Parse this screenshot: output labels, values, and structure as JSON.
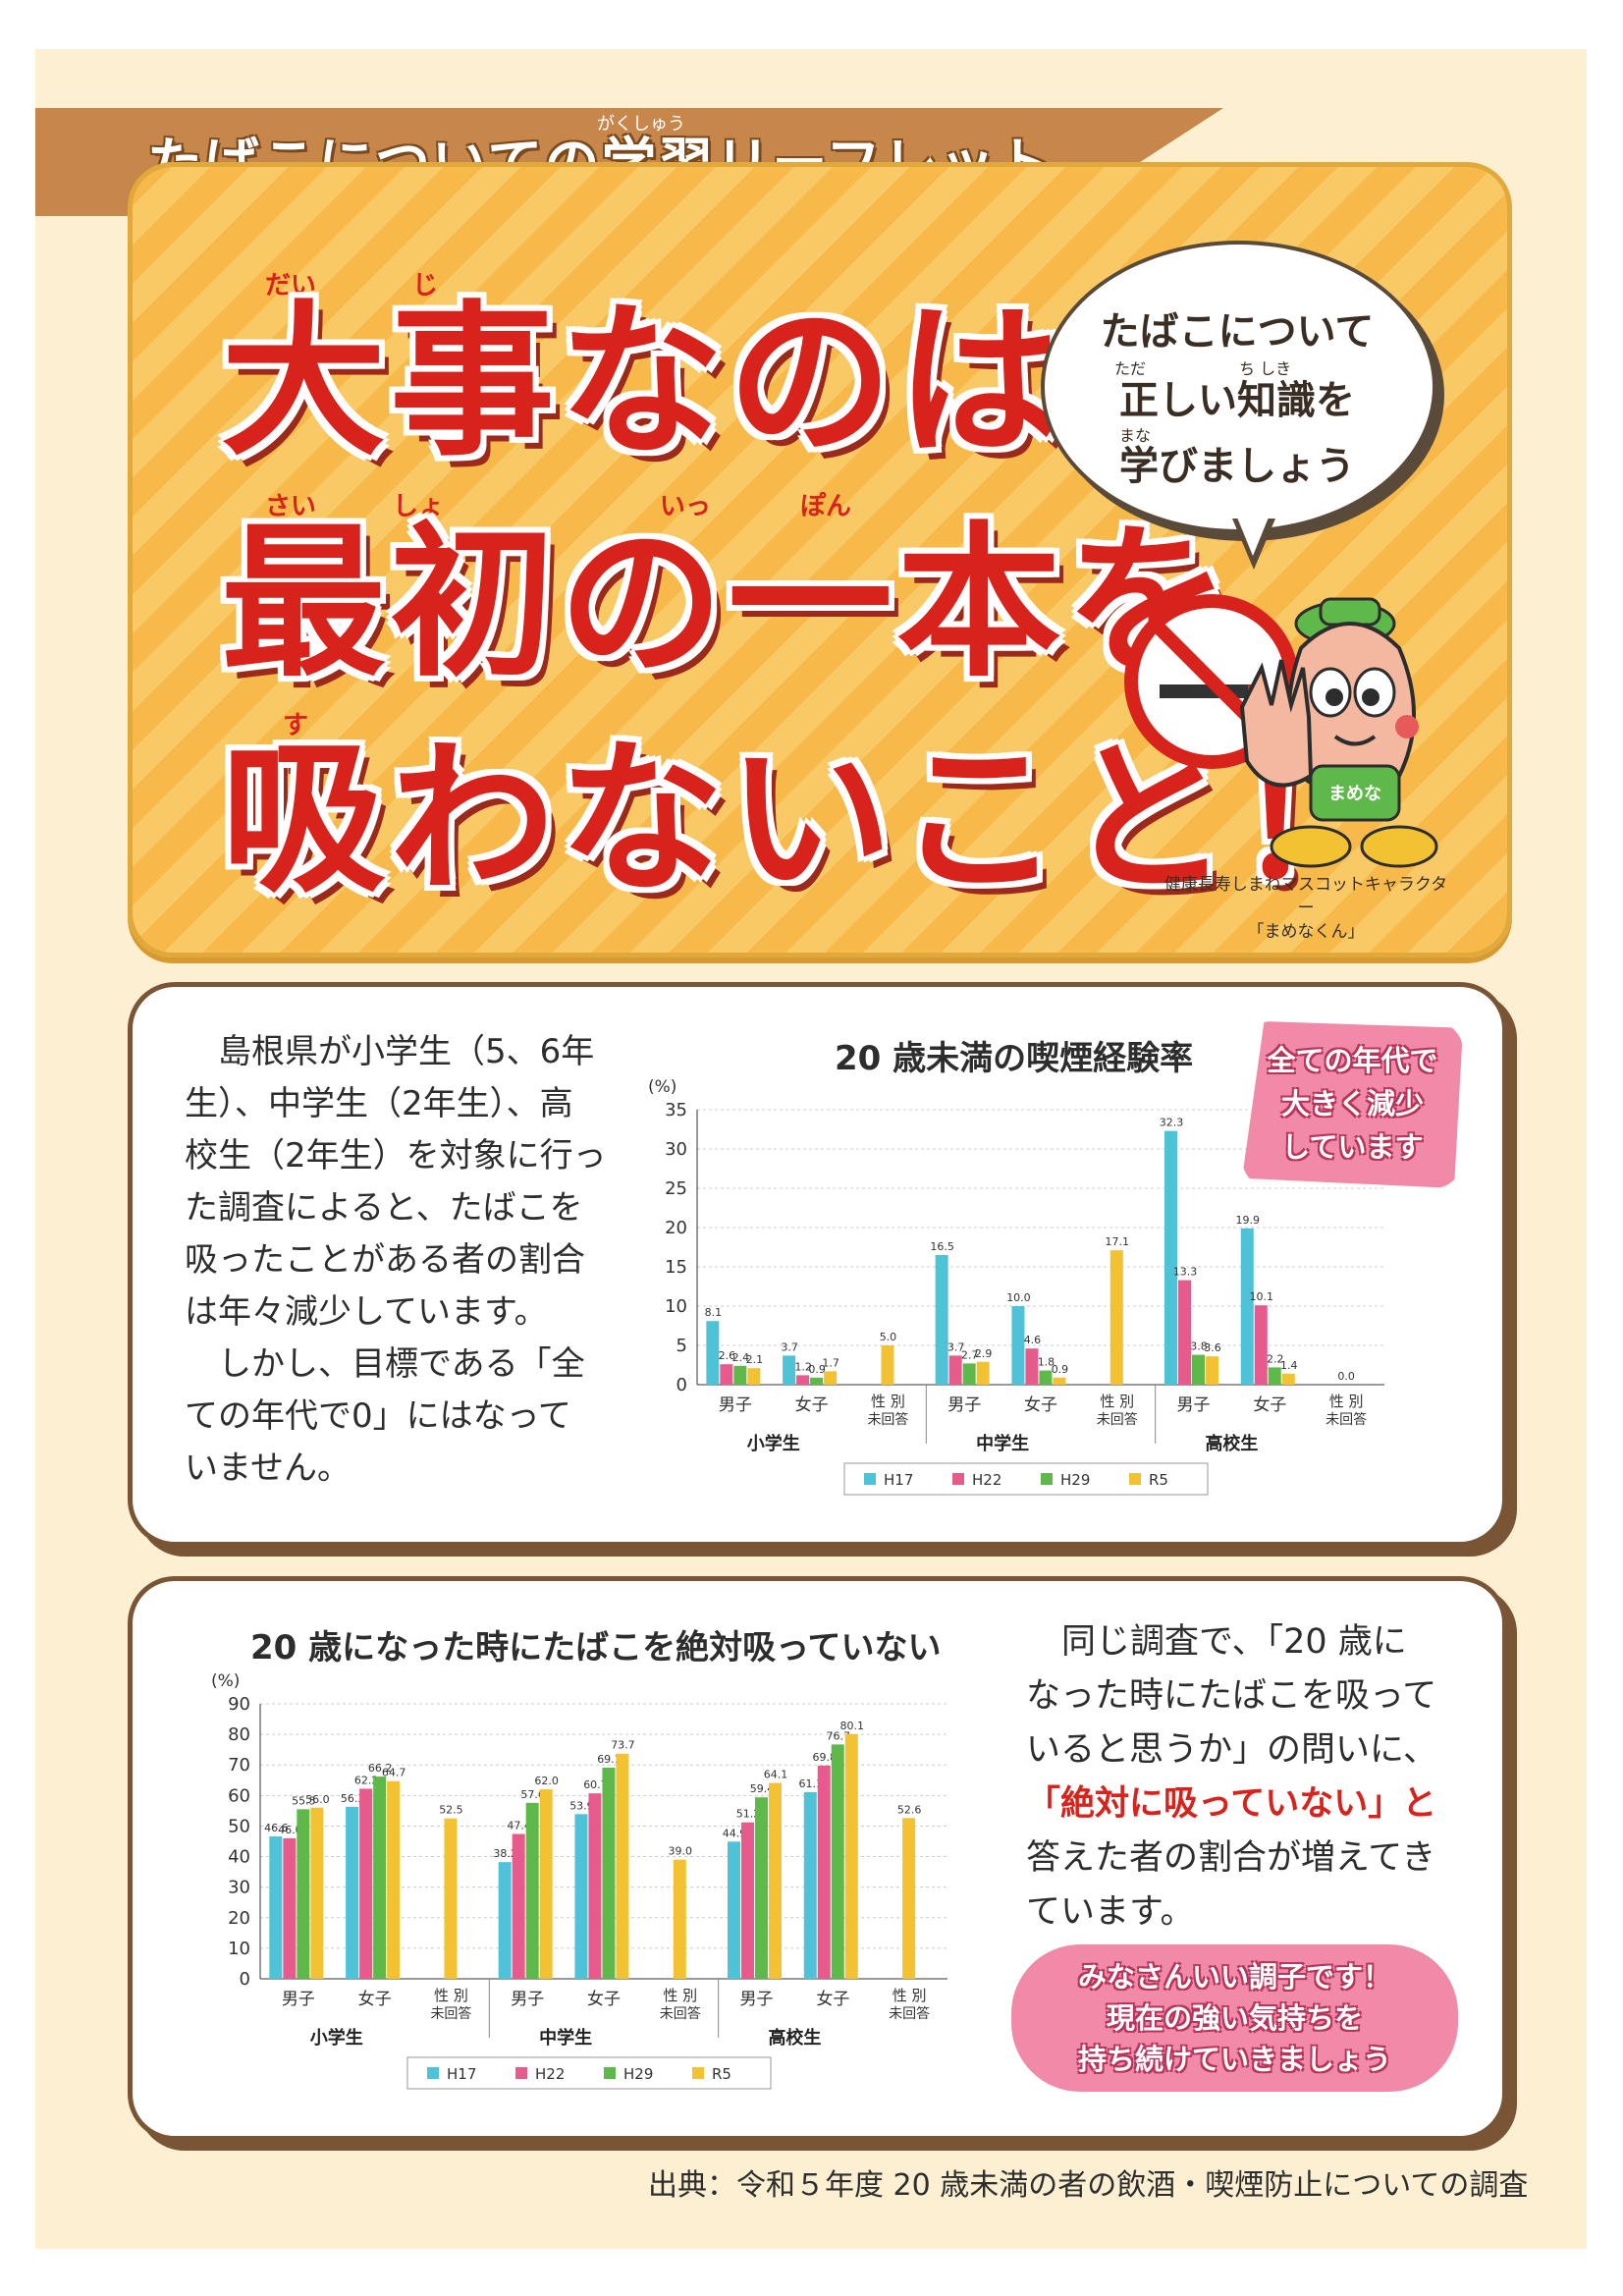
{
  "header": {
    "ribbon_title": "たばこについての学習リーフレット",
    "ribbon_ruby": "がくしゅう"
  },
  "hero": {
    "line1": "大事なのは",
    "line2": "最初の一本を",
    "line3": "吸わないこと！",
    "ruby": {
      "dai": "だい",
      "ji": "じ",
      "sai": "さい",
      "sho": "しょ",
      "ip": "いっ",
      "pon": "ぽん",
      "su": "す"
    },
    "bubble": {
      "line1": "たばこについて",
      "line2": "正しい知識を",
      "line3": "学びましょう",
      "ruby_tada": "ただ",
      "ruby_chishiki": "ち しき",
      "ruby_mana": "まな"
    },
    "mascot_label": "まめな",
    "caption_line1": "健康長寿しまねマスコットキャラクター",
    "caption_line2": "「まめなくん」"
  },
  "panel1": {
    "text_lines": [
      "島根県が小学生（5、6年",
      "生）、中学生（2年生）、高",
      "校生（2年生）を対象に行っ",
      "た調査によると、たばこを",
      "吸ったことがある者の割合",
      "は年々減少しています。",
      "しかし、目標である「全",
      "ての年代で0」にはなって",
      "いません。"
    ],
    "badge": [
      "全ての年代で",
      "大きく減少",
      "しています"
    ]
  },
  "panel2": {
    "text_lines": [
      "同じ調査で、「20 歳に",
      "なった時にたばこを吸って",
      "いると思うか」の問いに、",
      "「絶対に吸っていない」と",
      "答えた者の割合が増えてき",
      "ています。"
    ],
    "badge": [
      "みなさんいい調子です！",
      "現在の強い気持ちを",
      "持ち続けていきましょう"
    ]
  },
  "source": "出典：令和５年度 20 歳未満の者の飲酒・喫煙防止についての調査",
  "colors": {
    "H17": "#4ec3d8",
    "H22": "#e65a8c",
    "H29": "#5fb84a",
    "R5": "#f2c232",
    "accent_red": "#d8231d"
  },
  "chart_data": [
    {
      "type": "bar",
      "title": "20 歳未満の喫煙経験率",
      "ylabel": "(%)",
      "ylim": [
        0,
        35
      ],
      "yticks": [
        0,
        5,
        10,
        15,
        20,
        25,
        30,
        35
      ],
      "grid": true,
      "legend_position": "bottom",
      "categories": [
        "男子",
        "女子",
        "性別未回答",
        "男子",
        "女子",
        "性別未回答",
        "男子",
        "女子",
        "性別未回答"
      ],
      "groups": [
        "小学生",
        "中学生",
        "高校生"
      ],
      "series": [
        {
          "name": "H17",
          "values": [
            8.1,
            3.7,
            null,
            16.5,
            10.0,
            null,
            32.3,
            19.9,
            null
          ]
        },
        {
          "name": "H22",
          "values": [
            2.6,
            1.2,
            null,
            3.7,
            4.6,
            null,
            13.3,
            10.1,
            null
          ]
        },
        {
          "name": "H29",
          "values": [
            2.4,
            0.9,
            null,
            2.7,
            1.8,
            null,
            3.8,
            2.2,
            null
          ]
        },
        {
          "name": "R5",
          "values": [
            2.1,
            1.7,
            5.0,
            2.9,
            0.9,
            17.1,
            3.6,
            1.4,
            0.0
          ]
        }
      ]
    },
    {
      "type": "bar",
      "title": "20 歳になった時にたばこを絶対吸っていない",
      "ylabel": "(%)",
      "ylim": [
        0,
        90
      ],
      "yticks": [
        0,
        10,
        20,
        30,
        40,
        50,
        60,
        70,
        80,
        90
      ],
      "grid": true,
      "legend_position": "bottom",
      "categories": [
        "男子",
        "女子",
        "性別未回答",
        "男子",
        "女子",
        "性別未回答",
        "男子",
        "女子",
        "性別未回答"
      ],
      "groups": [
        "小学生",
        "中学生",
        "高校生"
      ],
      "series": [
        {
          "name": "H17",
          "values": [
            46.6,
            56.3,
            null,
            38.2,
            53.9,
            null,
            44.9,
            61.1,
            null
          ]
        },
        {
          "name": "H22",
          "values": [
            46.0,
            62.2,
            null,
            47.4,
            60.7,
            null,
            51.2,
            69.8,
            null
          ]
        },
        {
          "name": "H29",
          "values": [
            55.5,
            66.2,
            null,
            57.6,
            69.1,
            null,
            59.4,
            76.7,
            null
          ]
        },
        {
          "name": "R5",
          "values": [
            56.0,
            64.7,
            52.5,
            62.0,
            73.7,
            39.0,
            64.1,
            80.1,
            52.6
          ]
        }
      ]
    }
  ]
}
